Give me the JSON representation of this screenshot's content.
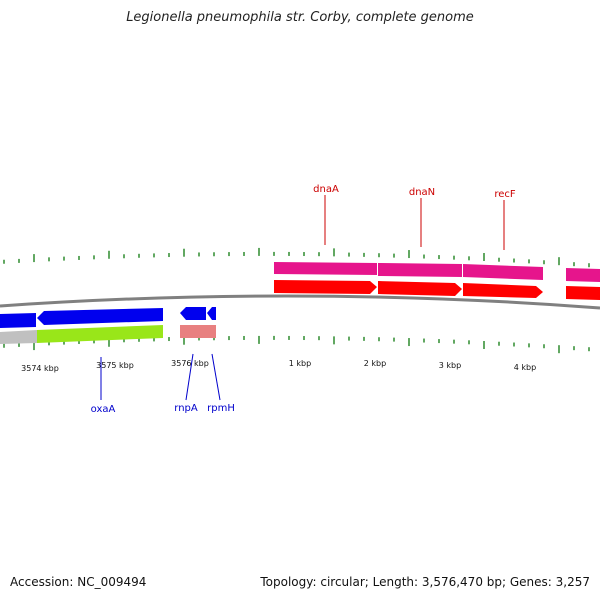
{
  "title": "Legionella pneumophila str. Corby, complete genome",
  "footer": {
    "accession": "Accession: NC_009494",
    "summary": "Topology: circular; Length: 3,576,470 bp; Genes: 3,257"
  },
  "colors": {
    "backbone": "#808080",
    "minor_tick": "#2e8b2e",
    "top_label": "#cc0000",
    "bottom_label": "#0000cc",
    "forward_cds": "#ff0000",
    "forward_gene": "#e6158c",
    "reverse_cds": "#0000ee",
    "reverse_gene": "#99e619",
    "trna_gene": "#e88080"
  },
  "axis_labels": [
    "3574 kbp",
    "3575 kbp",
    "3576 kbp",
    "1 kbp",
    "2 kbp",
    "3 kbp",
    "4 kbp"
  ],
  "genes_top": [
    "dnaA",
    "dnaN",
    "recF"
  ],
  "genes_bottom": [
    "oxaA",
    "rnpA",
    "rpmH"
  ]
}
